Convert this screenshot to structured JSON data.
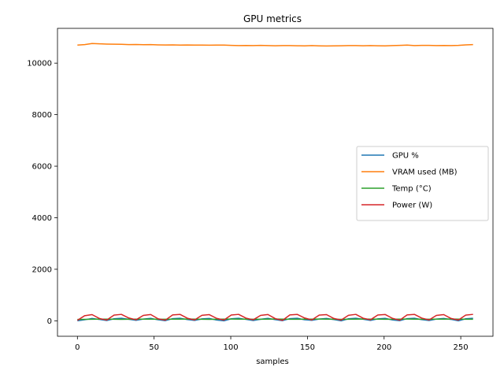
{
  "chart_data": {
    "type": "line",
    "title": "GPU metrics",
    "xlabel": "samples",
    "ylabel": "",
    "xlim": [
      -13,
      271
    ],
    "ylim": [
      -600,
      11350
    ],
    "xticks": [
      0,
      50,
      100,
      150,
      200,
      250
    ],
    "yticks": [
      0,
      2000,
      4000,
      6000,
      8000,
      10000
    ],
    "grid": false,
    "legend_position": "center-right",
    "series": [
      {
        "name": "GPU %",
        "color": "#1f77b4",
        "values": [
          0,
          40,
          90,
          55,
          10,
          80,
          100,
          60,
          20,
          70,
          95,
          40,
          5,
          85,
          100,
          50,
          15,
          75,
          90,
          30,
          0,
          80,
          100,
          55,
          10,
          60,
          95,
          45,
          5,
          85,
          100,
          40,
          20,
          70,
          90,
          50,
          0,
          80,
          100,
          60,
          15,
          75,
          95,
          35,
          5,
          85,
          100,
          45,
          10,
          70,
          90,
          55,
          0,
          80,
          100
        ]
      },
      {
        "name": "VRAM used (MB)",
        "color": "#ff7f0e",
        "values": [
          10700,
          10720,
          10760,
          10750,
          10740,
          10735,
          10730,
          10720,
          10725,
          10715,
          10720,
          10710,
          10705,
          10710,
          10700,
          10705,
          10700,
          10700,
          10695,
          10700,
          10700,
          10690,
          10680,
          10685,
          10680,
          10690,
          10680,
          10675,
          10680,
          10680,
          10675,
          10670,
          10680,
          10670,
          10665,
          10670,
          10675,
          10680,
          10680,
          10675,
          10680,
          10675,
          10670,
          10680,
          10690,
          10700,
          10680,
          10690,
          10690,
          10680,
          10685,
          10680,
          10690,
          10710,
          10720
        ]
      },
      {
        "name": "Temp (°C)",
        "color": "#2ca02c",
        "values": [
          55,
          58,
          62,
          64,
          63,
          60,
          58,
          61,
          64,
          66,
          65,
          62,
          60,
          63,
          66,
          67,
          64,
          61,
          59,
          62,
          65,
          67,
          66,
          63,
          60,
          62,
          65,
          67,
          65,
          62,
          60,
          63,
          66,
          67,
          64,
          61,
          59,
          62,
          65,
          67,
          66,
          63,
          60,
          62,
          65,
          67,
          65,
          62,
          60,
          63,
          66,
          67,
          64,
          62,
          60
        ]
      },
      {
        "name": "Power (W)",
        "color": "#d62728",
        "values": [
          20,
          200,
          240,
          90,
          30,
          220,
          250,
          110,
          40,
          210,
          245,
          80,
          25,
          230,
          250,
          100,
          35,
          215,
          240,
          95,
          30,
          225,
          250,
          105,
          40,
          210,
          245,
          85,
          20,
          230,
          250,
          110,
          35,
          220,
          240,
          90,
          30,
          215,
          250,
          100,
          40,
          225,
          245,
          95,
          25,
          230,
          250,
          105,
          35,
          210,
          240,
          90,
          30,
          220,
          250
        ]
      }
    ]
  }
}
